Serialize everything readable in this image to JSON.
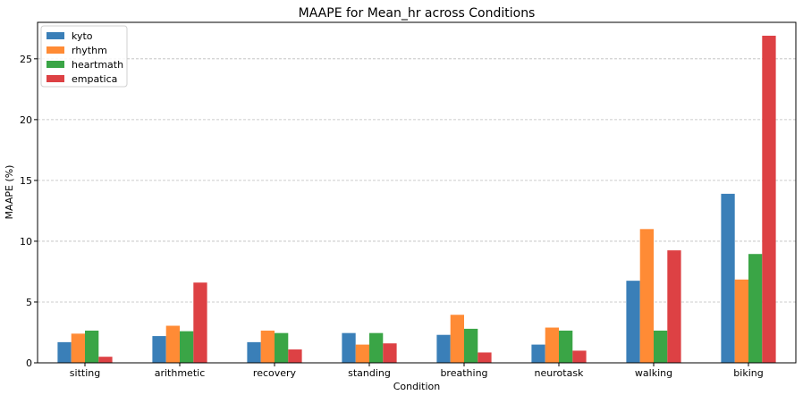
{
  "chart_data": {
    "type": "bar",
    "title": "MAAPE for Mean_hr across Conditions",
    "xlabel": "Condition",
    "ylabel": "MAAPE (%)",
    "ylim": [
      0,
      28
    ],
    "yticks": [
      0,
      5,
      10,
      15,
      20,
      25
    ],
    "grid": "horizontal dashed",
    "legend_position": "top-left",
    "categories": [
      "sitting",
      "arithmetic",
      "recovery",
      "standing",
      "breathing",
      "neurotask",
      "walking",
      "biking"
    ],
    "series": [
      {
        "name": "kyto",
        "color": "#3a7fb8",
        "values": [
          1.7,
          2.2,
          1.7,
          2.45,
          2.3,
          1.5,
          6.75,
          13.9
        ]
      },
      {
        "name": "rhythm",
        "color": "#ff8b35",
        "values": [
          2.4,
          3.05,
          2.65,
          1.5,
          3.95,
          2.9,
          11.0,
          6.85
        ]
      },
      {
        "name": "heartmath",
        "color": "#3aa546",
        "values": [
          2.65,
          2.6,
          2.45,
          2.45,
          2.8,
          2.65,
          2.65,
          8.95
        ]
      },
      {
        "name": "empatica",
        "color": "#dd4144",
        "values": [
          0.5,
          6.6,
          1.1,
          1.6,
          0.85,
          1.0,
          9.25,
          26.9
        ]
      }
    ]
  }
}
